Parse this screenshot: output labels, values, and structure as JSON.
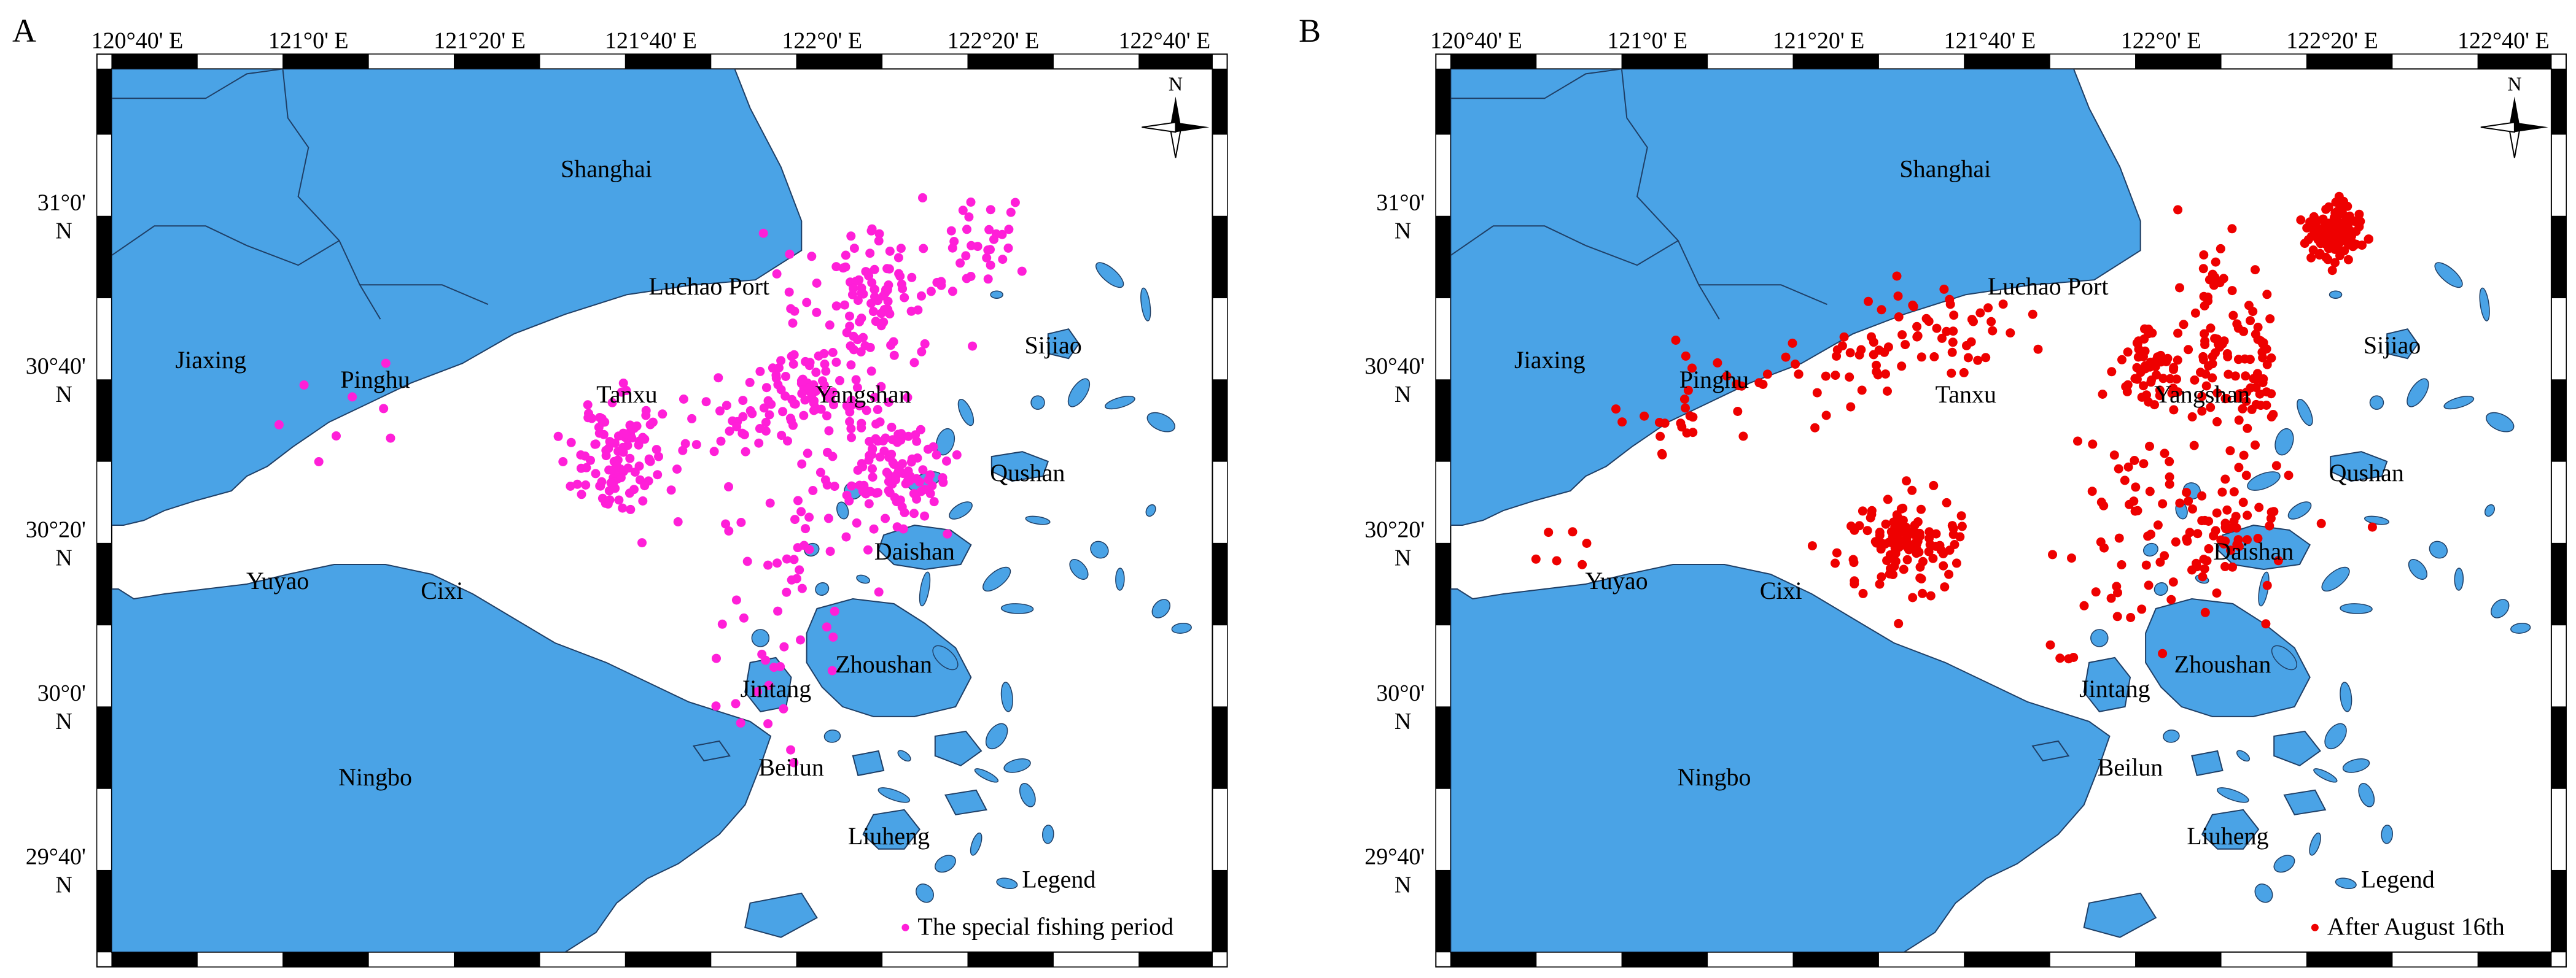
{
  "colors": {
    "land": "#4aa3e6",
    "sea": "#ffffff",
    "frame": "#000000",
    "border_line": "#1f3f66"
  },
  "panels": [
    {
      "id": "A",
      "panel_letter": "A",
      "point_color": "#ff1fd8",
      "legend_title": "Legend",
      "legend_item": "The special fishing period",
      "points_seed": 17,
      "clusters": [
        {
          "lon": 121.6,
          "lat": 30.48,
          "sx": 0.05,
          "sy": 0.06,
          "n": 110
        },
        {
          "lon": 121.98,
          "lat": 30.62,
          "sx": 0.06,
          "sy": 0.05,
          "n": 90
        },
        {
          "lon": 122.1,
          "lat": 30.82,
          "sx": 0.07,
          "sy": 0.07,
          "n": 100
        },
        {
          "lon": 122.14,
          "lat": 30.46,
          "sx": 0.05,
          "sy": 0.07,
          "n": 110
        },
        {
          "lon": 122.32,
          "lat": 30.94,
          "sx": 0.05,
          "sy": 0.05,
          "n": 30
        },
        {
          "lon": 121.83,
          "lat": 30.57,
          "sx": 0.07,
          "sy": 0.05,
          "n": 25
        },
        {
          "lon": 121.94,
          "lat": 30.34,
          "sx": 0.06,
          "sy": 0.12,
          "n": 35
        },
        {
          "lon": 121.92,
          "lat": 30.05,
          "sx": 0.06,
          "sy": 0.09,
          "n": 20
        },
        {
          "lon": 121.08,
          "lat": 30.56,
          "sx": 0.1,
          "sy": 0.04,
          "n": 8
        }
      ]
    },
    {
      "id": "B",
      "panel_letter": "B",
      "point_color": "#ee0000",
      "legend_title": "Legend",
      "legend_item": "After August 16th",
      "points_seed": 43,
      "clusters": [
        {
          "lon": 122.34,
          "lat": 30.95,
          "sx": 0.03,
          "sy": 0.03,
          "n": 120
        },
        {
          "lon": 121.5,
          "lat": 30.31,
          "sx": 0.06,
          "sy": 0.05,
          "n": 120
        },
        {
          "lon": 121.97,
          "lat": 30.66,
          "sx": 0.03,
          "sy": 0.04,
          "n": 55
        },
        {
          "lon": 122.1,
          "lat": 30.73,
          "sx": 0.03,
          "sy": 0.09,
          "n": 60
        },
        {
          "lon": 122.18,
          "lat": 30.68,
          "sx": 0.02,
          "sy": 0.1,
          "n": 50
        },
        {
          "lon": 122.12,
          "lat": 30.35,
          "sx": 0.07,
          "sy": 0.07,
          "n": 70
        },
        {
          "lon": 121.58,
          "lat": 30.74,
          "sx": 0.12,
          "sy": 0.05,
          "n": 55
        },
        {
          "lon": 121.3,
          "lat": 30.66,
          "sx": 0.1,
          "sy": 0.04,
          "n": 30
        },
        {
          "lon": 121.92,
          "lat": 30.34,
          "sx": 0.06,
          "sy": 0.12,
          "n": 40
        },
        {
          "lon": 121.06,
          "lat": 30.56,
          "sx": 0.08,
          "sy": 0.04,
          "n": 20
        },
        {
          "lon": 120.82,
          "lat": 30.29,
          "sx": 0.05,
          "sy": 0.03,
          "n": 6
        },
        {
          "lon": 121.78,
          "lat": 30.07,
          "sx": 0.03,
          "sy": 0.02,
          "n": 4
        }
      ]
    }
  ],
  "north_arrow_label": "N",
  "top_ticks": [
    {
      "lon": 120.6667,
      "label": "120°40' E"
    },
    {
      "lon": 121.0,
      "label": "121°0' E"
    },
    {
      "lon": 121.3333,
      "label": "121°20' E"
    },
    {
      "lon": 121.6667,
      "label": "121°40' E"
    },
    {
      "lon": 122.0,
      "label": "122°0' E"
    },
    {
      "lon": 122.3333,
      "label": "122°20' E"
    },
    {
      "lon": 122.6667,
      "label": "122°40' E"
    }
  ],
  "left_ticks": [
    {
      "lat": 31.0,
      "line1": "31°0'",
      "line2": "N"
    },
    {
      "lat": 30.6667,
      "line1": "30°40'",
      "line2": "N"
    },
    {
      "lat": 30.3333,
      "line1": "30°20'",
      "line2": "N"
    },
    {
      "lat": 30.0,
      "line1": "30°0'",
      "line2": "N"
    },
    {
      "lat": 29.6667,
      "line1": "29°40'",
      "line2": "N"
    }
  ],
  "place_labels": [
    {
      "name": "Shanghai",
      "lon": 121.58,
      "lat": 31.06
    },
    {
      "name": "Luchao Port",
      "lon": 121.78,
      "lat": 30.82
    },
    {
      "name": "Jiaxing",
      "lon": 120.81,
      "lat": 30.67
    },
    {
      "name": "Pinghu",
      "lon": 121.13,
      "lat": 30.63
    },
    {
      "name": "Tanxu",
      "lon": 121.62,
      "lat": 30.6
    },
    {
      "name": "Yangshan",
      "lon": 122.08,
      "lat": 30.6
    },
    {
      "name": "Sijiao",
      "lon": 122.45,
      "lat": 30.7
    },
    {
      "name": "Qushan",
      "lon": 122.4,
      "lat": 30.44
    },
    {
      "name": "Daishan",
      "lon": 122.18,
      "lat": 30.28
    },
    {
      "name": "Yuyao",
      "lon": 120.94,
      "lat": 30.22
    },
    {
      "name": "Cixi",
      "lon": 121.26,
      "lat": 30.2
    },
    {
      "name": "Jintang",
      "lon": 121.91,
      "lat": 30.0
    },
    {
      "name": "Zhoushan",
      "lon": 122.12,
      "lat": 30.05
    },
    {
      "name": "Beilun",
      "lon": 121.94,
      "lat": 29.84
    },
    {
      "name": "Ningbo",
      "lon": 121.13,
      "lat": 29.82
    },
    {
      "name": "Liuheng",
      "lon": 122.13,
      "lat": 29.7
    }
  ],
  "land_polygons": [
    {
      "name": "north-shore",
      "pts": [
        [
          120.617,
          31.28
        ],
        [
          121.83,
          31.28
        ],
        [
          121.86,
          31.2
        ],
        [
          121.92,
          31.08
        ],
        [
          121.96,
          30.97
        ],
        [
          121.96,
          30.91
        ],
        [
          121.87,
          30.85
        ],
        [
          121.75,
          30.84
        ],
        [
          121.62,
          30.82
        ],
        [
          121.5,
          30.78
        ],
        [
          121.4,
          30.74
        ],
        [
          121.3,
          30.68
        ],
        [
          121.2,
          30.64
        ],
        [
          121.12,
          30.6
        ],
        [
          121.04,
          30.56
        ],
        [
          120.97,
          30.51
        ],
        [
          120.92,
          30.47
        ],
        [
          120.88,
          30.45
        ],
        [
          120.85,
          30.42
        ],
        [
          120.78,
          30.4
        ],
        [
          120.72,
          30.38
        ],
        [
          120.68,
          30.36
        ],
        [
          120.64,
          30.35
        ],
        [
          120.617,
          30.35
        ]
      ]
    },
    {
      "name": "south-shore",
      "pts": [
        [
          120.617,
          29.48
        ],
        [
          121.5,
          29.48
        ],
        [
          121.56,
          29.52
        ],
        [
          121.6,
          29.58
        ],
        [
          121.66,
          29.63
        ],
        [
          121.72,
          29.66
        ],
        [
          121.8,
          29.72
        ],
        [
          121.85,
          29.78
        ],
        [
          121.88,
          29.86
        ],
        [
          121.9,
          29.92
        ],
        [
          121.86,
          29.95
        ],
        [
          121.8,
          29.97
        ],
        [
          121.74,
          29.99
        ],
        [
          121.66,
          30.03
        ],
        [
          121.58,
          30.07
        ],
        [
          121.48,
          30.11
        ],
        [
          121.4,
          30.16
        ],
        [
          121.32,
          30.21
        ],
        [
          121.24,
          30.25
        ],
        [
          121.15,
          30.27
        ],
        [
          121.05,
          30.27
        ],
        [
          120.96,
          30.25
        ],
        [
          120.88,
          30.23
        ],
        [
          120.8,
          30.22
        ],
        [
          120.72,
          30.21
        ],
        [
          120.66,
          30.2
        ],
        [
          120.63,
          30.22
        ],
        [
          120.617,
          30.22
        ]
      ]
    },
    {
      "name": "zhoushan-island",
      "pts": [
        [
          121.99,
          30.18
        ],
        [
          122.06,
          30.2
        ],
        [
          122.14,
          30.19
        ],
        [
          122.2,
          30.15
        ],
        [
          122.26,
          30.1
        ],
        [
          122.29,
          30.04
        ],
        [
          122.26,
          29.98
        ],
        [
          122.18,
          29.96
        ],
        [
          122.1,
          29.96
        ],
        [
          122.04,
          29.98
        ],
        [
          122.0,
          30.02
        ],
        [
          121.97,
          30.07
        ],
        [
          121.97,
          30.13
        ]
      ]
    },
    {
      "name": "daishan-island",
      "pts": [
        [
          122.12,
          30.33
        ],
        [
          122.18,
          30.35
        ],
        [
          122.25,
          30.34
        ],
        [
          122.29,
          30.31
        ],
        [
          122.27,
          30.27
        ],
        [
          122.2,
          30.26
        ],
        [
          122.14,
          30.27
        ],
        [
          122.11,
          30.3
        ]
      ]
    },
    {
      "name": "jintang-island",
      "pts": [
        [
          121.86,
          30.07
        ],
        [
          121.91,
          30.08
        ],
        [
          121.94,
          30.04
        ],
        [
          121.93,
          29.98
        ],
        [
          121.88,
          29.97
        ],
        [
          121.85,
          30.01
        ]
      ]
    },
    {
      "name": "qushan-island",
      "pts": [
        [
          122.33,
          30.49
        ],
        [
          122.39,
          30.5
        ],
        [
          122.44,
          30.48
        ],
        [
          122.43,
          30.45
        ],
        [
          122.37,
          30.44
        ],
        [
          122.33,
          30.46
        ]
      ]
    },
    {
      "name": "sijiao-island",
      "pts": [
        [
          122.44,
          30.74
        ],
        [
          122.48,
          30.75
        ],
        [
          122.5,
          30.72
        ],
        [
          122.48,
          30.69
        ],
        [
          122.44,
          30.7
        ]
      ]
    },
    {
      "name": "liuheng-island",
      "pts": [
        [
          122.1,
          29.76
        ],
        [
          122.16,
          29.77
        ],
        [
          122.19,
          29.73
        ],
        [
          122.16,
          29.69
        ],
        [
          122.11,
          29.69
        ],
        [
          122.08,
          29.72
        ]
      ]
    },
    {
      "name": "southeast-island-1",
      "pts": [
        [
          122.22,
          29.92
        ],
        [
          122.28,
          29.93
        ],
        [
          122.31,
          29.89
        ],
        [
          122.27,
          29.86
        ],
        [
          122.22,
          29.88
        ]
      ]
    },
    {
      "name": "southeast-island-2",
      "pts": [
        [
          122.06,
          29.88
        ],
        [
          122.11,
          29.89
        ],
        [
          122.12,
          29.85
        ],
        [
          122.07,
          29.84
        ]
      ]
    },
    {
      "name": "southeast-island-3",
      "pts": [
        [
          122.24,
          29.8
        ],
        [
          122.3,
          29.81
        ],
        [
          122.32,
          29.77
        ],
        [
          122.26,
          29.76
        ]
      ]
    },
    {
      "name": "southeast-island-4",
      "pts": [
        [
          121.86,
          29.58
        ],
        [
          121.96,
          29.6
        ],
        [
          121.99,
          29.55
        ],
        [
          121.92,
          29.51
        ],
        [
          121.85,
          29.53
        ]
      ]
    },
    {
      "name": "south-sound-island",
      "pts": [
        [
          121.75,
          29.9
        ],
        [
          121.8,
          29.91
        ],
        [
          121.82,
          29.88
        ],
        [
          121.77,
          29.87
        ]
      ]
    }
  ],
  "small_islands": [
    [
      122.34,
      30.82
    ],
    [
      122.56,
      30.86
    ],
    [
      122.63,
      30.8
    ],
    [
      122.5,
      30.62
    ],
    [
      122.58,
      30.6
    ],
    [
      122.66,
      30.56
    ],
    [
      122.28,
      30.58
    ],
    [
      122.24,
      30.52
    ],
    [
      122.27,
      30.38
    ],
    [
      122.42,
      30.36
    ],
    [
      122.5,
      30.26
    ],
    [
      122.58,
      30.24
    ],
    [
      122.66,
      30.18
    ],
    [
      122.7,
      30.14
    ],
    [
      122.54,
      30.3
    ],
    [
      122.04,
      30.38
    ],
    [
      122.06,
      30.42
    ],
    [
      121.98,
      30.3
    ],
    [
      122.08,
      30.24
    ],
    [
      122.0,
      30.22
    ],
    [
      122.2,
      30.22
    ],
    [
      122.34,
      30.24
    ],
    [
      122.38,
      30.18
    ],
    [
      122.24,
      30.08
    ],
    [
      122.36,
      30.0
    ],
    [
      122.34,
      29.92
    ],
    [
      122.38,
      29.86
    ],
    [
      122.32,
      29.84
    ],
    [
      122.4,
      29.8
    ],
    [
      122.3,
      29.7
    ],
    [
      122.24,
      29.66
    ],
    [
      122.36,
      29.62
    ],
    [
      122.2,
      29.6
    ],
    [
      122.44,
      29.72
    ],
    [
      121.88,
      30.12
    ],
    [
      122.02,
      29.92
    ],
    [
      122.16,
      29.88
    ],
    [
      122.42,
      30.6
    ],
    [
      122.64,
      30.38
    ],
    [
      122.2,
      30.44
    ],
    [
      122.14,
      29.8
    ]
  ],
  "admin_boundaries": [
    [
      [
        120.617,
        31.22
      ],
      [
        120.8,
        31.22
      ],
      [
        120.88,
        31.27
      ],
      [
        120.95,
        31.28
      ]
    ],
    [
      [
        120.95,
        31.28
      ],
      [
        120.96,
        31.18
      ],
      [
        121.0,
        31.12
      ],
      [
        120.98,
        31.02
      ],
      [
        121.06,
        30.93
      ],
      [
        121.1,
        30.84
      ],
      [
        121.14,
        30.77
      ]
    ],
    [
      [
        121.06,
        30.93
      ],
      [
        120.98,
        30.88
      ],
      [
        120.88,
        30.92
      ],
      [
        120.8,
        30.96
      ],
      [
        120.7,
        30.96
      ],
      [
        120.617,
        30.9
      ]
    ],
    [
      [
        121.1,
        30.84
      ],
      [
        121.26,
        30.84
      ],
      [
        121.35,
        30.8
      ]
    ]
  ]
}
